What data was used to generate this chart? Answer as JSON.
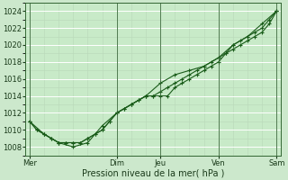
{
  "xlabel": "Pression niveau de la mer( hPa )",
  "bg_color": "#cce8cc",
  "plot_bg_color": "#c8eac8",
  "grid_color": "#b0d8b0",
  "line_color": "#1a5c1a",
  "ylim": [
    1007,
    1025
  ],
  "yticks": [
    1008,
    1010,
    1012,
    1014,
    1016,
    1018,
    1020,
    1022,
    1024
  ],
  "xtick_labels": [
    "Mer",
    "",
    "Dim",
    "Jeu",
    "",
    "Ven",
    "",
    "Sam"
  ],
  "xtick_positions": [
    0,
    3,
    6,
    9,
    11,
    13,
    15,
    17
  ],
  "day_vlines": [
    0,
    6,
    9,
    13,
    17
  ],
  "total_x": 17,
  "series": [
    {
      "x": [
        0,
        0.5,
        1,
        1.5,
        2,
        2.5,
        3,
        3.5,
        4,
        4.5,
        5,
        5.5,
        6,
        6.5,
        7,
        7.5,
        8,
        8.5,
        9,
        9.5,
        10,
        10.5,
        11,
        11.5,
        12,
        12.5,
        13,
        13.5,
        14,
        14.5,
        15,
        15.5,
        16,
        16.5,
        17
      ],
      "y": [
        1011,
        1010,
        1009.5,
        1009,
        1008.5,
        1008.5,
        1008.5,
        1008.5,
        1009,
        1009.5,
        1010,
        1011,
        1012,
        1012.5,
        1013,
        1013.5,
        1014,
        1014,
        1014,
        1014,
        1015,
        1015.5,
        1016,
        1016.5,
        1017,
        1017.5,
        1018,
        1019,
        1020,
        1020.5,
        1021,
        1021.5,
        1022,
        1023,
        1024
      ]
    },
    {
      "x": [
        0,
        0.5,
        1,
        1.5,
        2,
        2.5,
        3,
        3.5,
        4,
        4.5,
        5,
        5.5,
        6,
        6.5,
        7,
        7.5,
        8,
        8.5,
        9,
        9.5,
        10,
        10.5,
        11,
        11.5,
        12,
        12.5,
        13,
        13.5,
        14,
        14.5,
        15,
        15.5,
        16,
        16.5,
        17
      ],
      "y": [
        1011,
        1010,
        1009.5,
        1009,
        1008.5,
        1008.5,
        1008.5,
        1008.5,
        1009,
        1009.5,
        1010,
        1011,
        1012,
        1012.5,
        1013,
        1013.5,
        1014,
        1014,
        1014.5,
        1015,
        1015.5,
        1016,
        1016.5,
        1017,
        1017.5,
        1018,
        1018.5,
        1019,
        1019.5,
        1020,
        1020.5,
        1021,
        1021.5,
        1022.5,
        1024
      ]
    },
    {
      "x": [
        0,
        1,
        2,
        3,
        4,
        5,
        6,
        7,
        8,
        9,
        10,
        11,
        12,
        13,
        14,
        15,
        16,
        17
      ],
      "y": [
        1011,
        1009.5,
        1008.5,
        1008,
        1008.5,
        1010.5,
        1012,
        1013,
        1014,
        1015.5,
        1016.5,
        1017,
        1017.5,
        1018.5,
        1020,
        1021,
        1022.5,
        1024
      ]
    }
  ]
}
